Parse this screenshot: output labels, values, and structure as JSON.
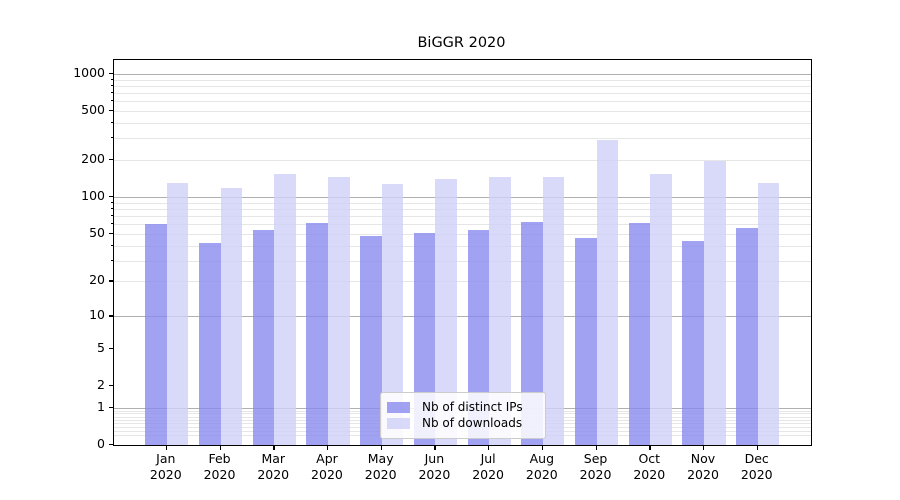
{
  "chart_data": {
    "type": "bar",
    "title": "BiGGR 2020",
    "categories": [
      "Jan",
      "Feb",
      "Mar",
      "Apr",
      "May",
      "Jun",
      "Jul",
      "Aug",
      "Sep",
      "Oct",
      "Nov",
      "Dec"
    ],
    "category_year_line": "2020",
    "series": [
      {
        "name": "Nb of distinct IPs",
        "color": "rgba(136,136,238,0.78)",
        "values": [
          60,
          42,
          54,
          61,
          48,
          51,
          54,
          62,
          46,
          61,
          44,
          56
        ]
      },
      {
        "name": "Nb of downloads",
        "color": "rgba(208,208,247,0.80)",
        "values": [
          130,
          118,
          154,
          147,
          128,
          140,
          147,
          147,
          290,
          155,
          196,
          130
        ]
      }
    ],
    "yscale": "log1p",
    "yticks": [
      0,
      1,
      2,
      5,
      10,
      20,
      50,
      100,
      200,
      500,
      1000
    ],
    "major_grid_values": [
      1,
      10,
      100,
      1000
    ],
    "ylim": [
      0,
      1300
    ],
    "xlabel": "",
    "ylabel": "",
    "grid": true,
    "legend_position": "lower center",
    "colors": {
      "major_grid": "#b0b0b0",
      "minor_grid": "#e6e6e6",
      "axis": "#000000",
      "background": "#ffffff"
    }
  }
}
